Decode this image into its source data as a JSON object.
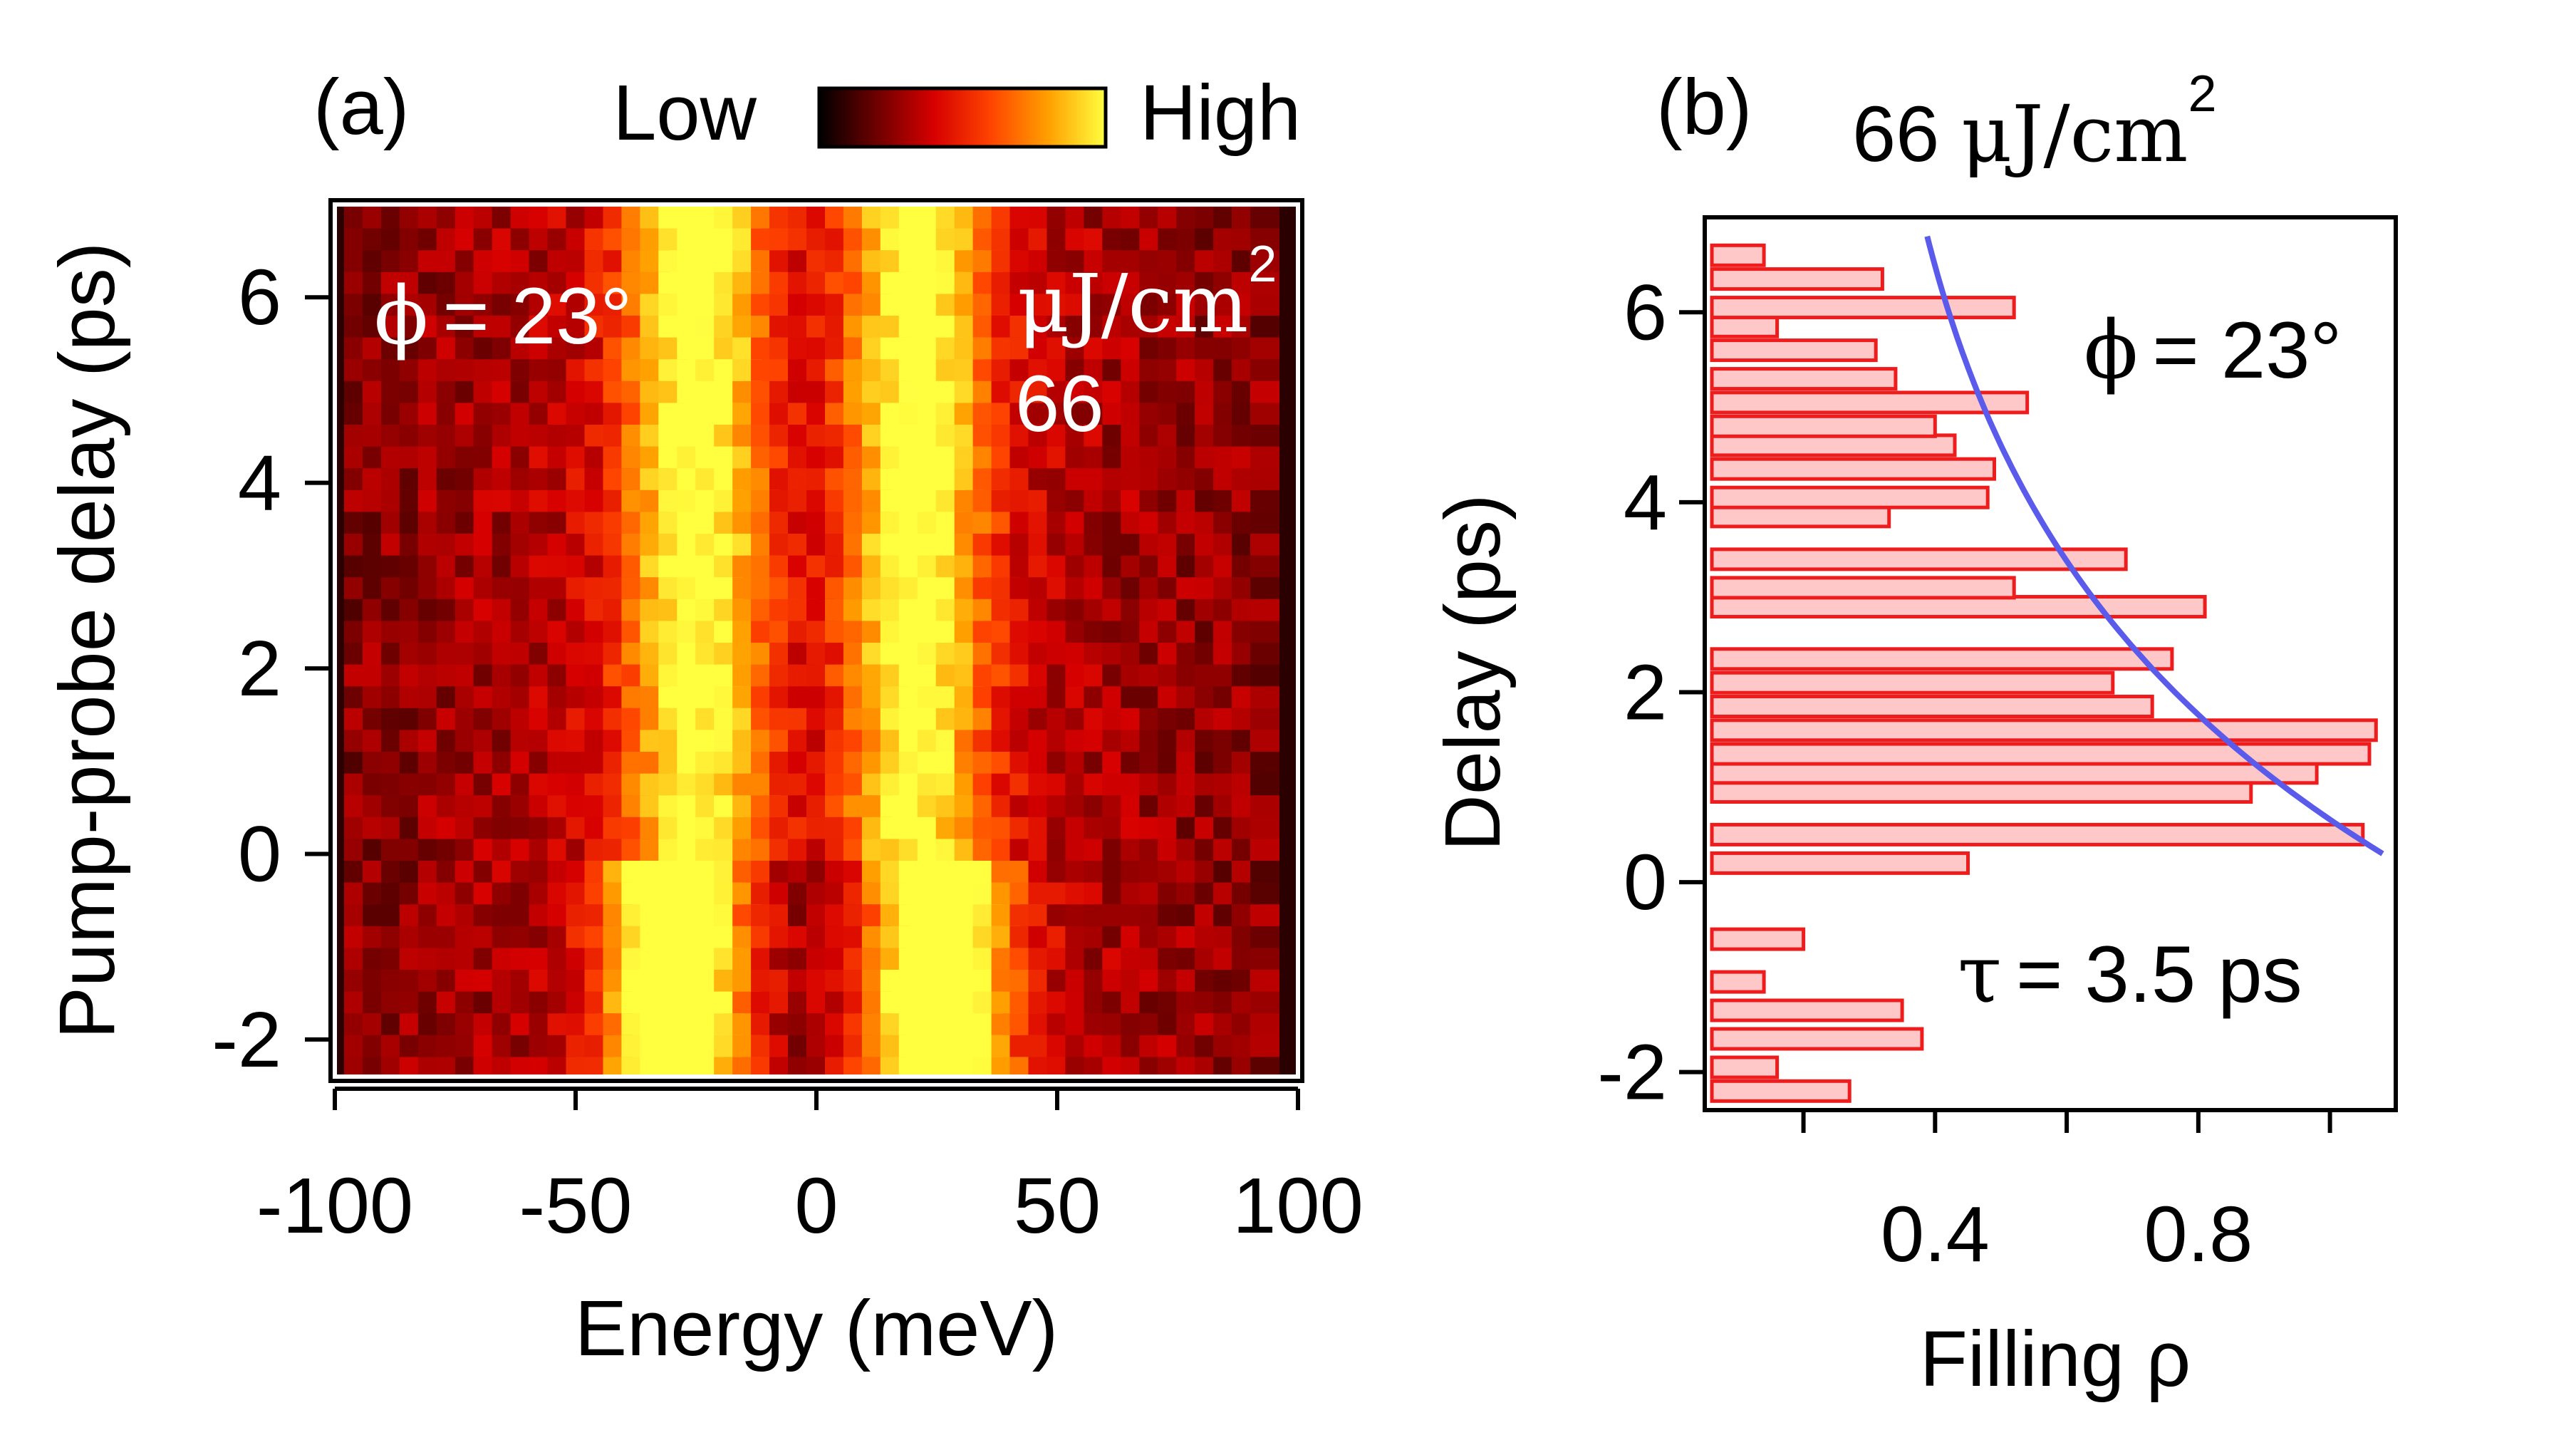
{
  "chart_data": [
    {
      "id": "a",
      "type": "heatmap",
      "panel_label": "(a)",
      "xlabel": "Energy (meV)",
      "ylabel": "Pump-probe delay (ps)",
      "xlim": [
        -100,
        100
      ],
      "ylim": [
        -2.4,
        7.0
      ],
      "xticks": [
        -100,
        -50,
        0,
        50,
        100
      ],
      "yticks": [
        -2,
        0,
        2,
        4,
        6
      ],
      "colorbar": {
        "low_label": "Low",
        "high_label": "High",
        "stops": [
          "#000000",
          "#6e0000",
          "#d60000",
          "#ff4400",
          "#ffa000",
          "#ffff40"
        ]
      },
      "annotations": {
        "phi_symbol": "ϕ",
        "phi_value": "= 23°",
        "fluence_unit": "μJ/cm",
        "fluence_exp": "2",
        "fluence_value": "66"
      },
      "grid": {
        "energy_bins": 50,
        "delay_bins": 40,
        "energy_range": [
          -96,
          96
        ],
        "delay_range": [
          -2.4,
          7.0
        ]
      },
      "model": {
        "peak_center_before_meV": 28,
        "peak_center_after_meV": 24,
        "peak_width_meV": 14,
        "pump_arrival_ps": 0,
        "peak_amplitude_before": 0.95,
        "peak_amplitude_after": 0.62,
        "amplitude_recovery_tau_ps": 3.5
      }
    },
    {
      "id": "b",
      "type": "bar",
      "orientation": "horizontal",
      "panel_label": "(b)",
      "title_value": "66 ",
      "title_unit": "μJ/cm",
      "title_exp": "2",
      "xlabel": "Filling ρ",
      "ylabel": "Delay (ps)",
      "xlim": [
        0.05,
        1.1
      ],
      "ylim": [
        -2.4,
        7.0
      ],
      "xticks_labeled": [
        0.4,
        0.8
      ],
      "xticks": [
        0.2,
        0.4,
        0.6,
        0.8,
        1.0
      ],
      "yticks": [
        -2,
        0,
        2,
        4,
        6
      ],
      "delays": [
        -2.2,
        -1.95,
        -1.65,
        -1.35,
        -1.05,
        -0.6,
        0.2,
        0.5,
        0.95,
        1.15,
        1.35,
        1.6,
        1.85,
        2.1,
        2.35,
        2.9,
        3.1,
        3.4,
        3.85,
        4.05,
        4.35,
        4.6,
        4.8,
        5.05,
        5.3,
        5.6,
        5.85,
        6.05,
        6.35,
        6.6
      ],
      "filling": [
        0.27,
        0.16,
        0.38,
        0.35,
        0.14,
        0.2,
        0.45,
        1.05,
        0.88,
        0.98,
        1.06,
        1.07,
        0.73,
        0.67,
        0.76,
        0.81,
        0.52,
        0.69,
        0.33,
        0.48,
        0.49,
        0.43,
        0.4,
        0.54,
        0.34,
        0.31,
        0.16,
        0.52,
        0.32,
        0.14
      ],
      "fit": {
        "tau_ps": 3.5,
        "amplitude": 1.08,
        "t_start_ps": 0.3,
        "t_end_ps": 6.8,
        "color": "#5a5aeb"
      },
      "bar_fill": "#ffc8c8",
      "bar_edge": "#ee1c1c",
      "annotations": {
        "phi_symbol": "ϕ",
        "phi_value": "= 23°",
        "tau_symbol": "τ",
        "tau_value": "= 3.5 ps"
      }
    }
  ]
}
